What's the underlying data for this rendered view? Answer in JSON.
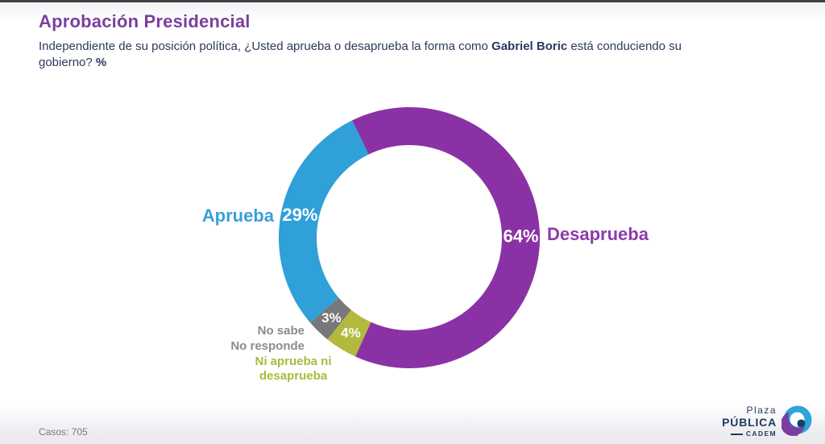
{
  "header": {
    "title": "Aprobación Presidencial",
    "question": {
      "part1": "Independiente de su posición política, ¿Usted aprueba o desaprueba la forma como ",
      "bold1": "Gabriel Boric",
      "part2": " está conduciendo su gobierno? ",
      "bold2": "%"
    }
  },
  "chart_data": {
    "type": "pie",
    "subtype": "donut",
    "title": "Aprobación Presidencial",
    "unit": "%",
    "direction": "clockwise",
    "start_angle_deg": -26,
    "inner_radius_ratio": 0.71,
    "segments": [
      {
        "label": "Desaprueba",
        "value": 64,
        "color": "#8a32a5"
      },
      {
        "label": "Ni aprueba ni desaprueba",
        "value": 4,
        "color": "#b3b93d"
      },
      {
        "label": "No sabe No responde",
        "value": 3,
        "color": "#78787a"
      },
      {
        "label": "Aprueba",
        "value": 29,
        "color": "#2fa0d8"
      }
    ],
    "value_label_color": "#ffffff",
    "captions": {
      "aprueba": {
        "text": "Aprueba",
        "color": "#3a9fd9"
      },
      "desaprueba": {
        "text": "Desaprueba",
        "color": "#8c3bab"
      },
      "nosabe": {
        "line1": "No sabe",
        "line2": "No responde",
        "color": "#8b8b8b"
      },
      "niaprueba": {
        "line1": "Ni aprueba ni",
        "line2": "desaprueba",
        "color": "#a3bd3d"
      }
    }
  },
  "footer": {
    "cases_label": "Casos: 705",
    "logo": {
      "line1": "Plaza",
      "line2": "PÚBLICA",
      "line3": "CADEM",
      "navy": "#1e3a5f",
      "blue": "#2ea4dc",
      "purple": "#7c3da1"
    }
  }
}
